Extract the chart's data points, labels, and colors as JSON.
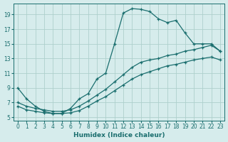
{
  "xlabel": "Humidex (Indice chaleur)",
  "bg_color": "#d6ecec",
  "line_color": "#1a6e6e",
  "grid_color": "#aed0cc",
  "xlim": [
    -0.5,
    23.5
  ],
  "ylim": [
    4.5,
    20.5
  ],
  "xticks": [
    0,
    1,
    2,
    3,
    4,
    5,
    6,
    7,
    8,
    9,
    10,
    11,
    12,
    13,
    14,
    15,
    16,
    17,
    18,
    19,
    20,
    21,
    22,
    23
  ],
  "yticks": [
    5,
    7,
    9,
    11,
    13,
    15,
    17,
    19
  ],
  "series": [
    {
      "x": [
        0,
        1,
        2,
        3,
        4,
        5,
        6,
        7,
        8,
        9,
        10,
        11,
        12,
        13,
        14,
        15,
        16,
        17,
        18,
        19,
        20,
        21,
        22,
        23
      ],
      "y": [
        9.0,
        7.5,
        6.5,
        5.8,
        5.5,
        5.5,
        6.2,
        7.5,
        8.2,
        10.2,
        11.0,
        15.0,
        19.2,
        19.8,
        19.7,
        19.4,
        18.4,
        17.9,
        18.2,
        16.5,
        15.0,
        15.0,
        15.0,
        14.0
      ]
    },
    {
      "x": [
        0,
        1,
        2,
        3,
        4,
        5,
        6,
        7,
        8,
        9,
        10,
        11,
        12,
        13,
        14,
        15,
        16,
        17,
        18,
        19,
        20,
        21,
        22,
        23
      ],
      "y": [
        7.0,
        6.5,
        6.2,
        6.0,
        5.8,
        5.8,
        6.0,
        6.5,
        7.2,
        8.0,
        8.8,
        9.8,
        10.8,
        11.8,
        12.5,
        12.8,
        13.0,
        13.4,
        13.6,
        14.0,
        14.2,
        14.5,
        14.8,
        14.0
      ]
    },
    {
      "x": [
        0,
        1,
        2,
        3,
        4,
        5,
        6,
        7,
        8,
        9,
        10,
        11,
        12,
        13,
        14,
        15,
        16,
        17,
        18,
        19,
        20,
        21,
        22,
        23
      ],
      "y": [
        6.5,
        6.0,
        5.8,
        5.6,
        5.5,
        5.5,
        5.6,
        5.9,
        6.5,
        7.2,
        7.8,
        8.6,
        9.4,
        10.2,
        10.8,
        11.2,
        11.6,
        12.0,
        12.2,
        12.5,
        12.8,
        13.0,
        13.2,
        12.8
      ]
    }
  ]
}
